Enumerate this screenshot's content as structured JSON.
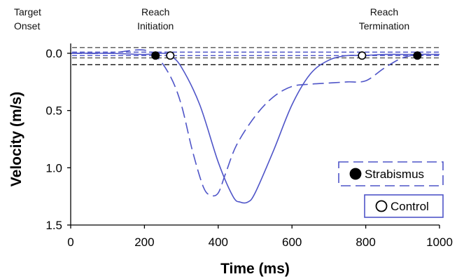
{
  "chart_data": {
    "type": "line",
    "xlabel": "Time (ms)",
    "ylabel": "Velocity (m/s)",
    "xlim": [
      0,
      1000
    ],
    "ylim": [
      0,
      1.5
    ],
    "y_inverted": true,
    "x_ticks": [
      0,
      200,
      400,
      600,
      800,
      1000
    ],
    "x_tick_labels": [
      "0",
      "200",
      "400",
      "600",
      "800",
      "1000"
    ],
    "y_ticks": [
      0.0,
      0.5,
      1.0,
      1.5
    ],
    "y_tick_labels": [
      "0.0",
      "0.5",
      "1.0",
      "1.5"
    ],
    "grid": false,
    "annotations": [
      {
        "lines": [
          "Target",
          "Onset"
        ],
        "x": 0
      },
      {
        "lines": [
          "Reach",
          "Initiation"
        ],
        "x": 230
      },
      {
        "lines": [
          "Reach",
          "Termination"
        ],
        "x": 850
      }
    ],
    "threshold_lines": [
      {
        "y": -0.05,
        "color": "#555555"
      },
      {
        "y": -0.01,
        "color": "#4f55c8"
      },
      {
        "y": 0.02,
        "color": "#4f55c8"
      },
      {
        "y": 0.04,
        "color": "#555555"
      },
      {
        "y": 0.1,
        "color": "#111111"
      }
    ],
    "series": [
      {
        "name": "Strabismus",
        "color": "#4f55c8",
        "dash": "dashed",
        "x": [
          0,
          100,
          190,
          230,
          270,
          300,
          330,
          360,
          380,
          400,
          420,
          450,
          500,
          550,
          600,
          650,
          700,
          750,
          800,
          850,
          900,
          950,
          1000
        ],
        "y": [
          0.0,
          0.0,
          -0.03,
          0.02,
          0.2,
          0.45,
          0.85,
          1.17,
          1.24,
          1.22,
          1.05,
          0.8,
          0.55,
          0.38,
          0.29,
          0.27,
          0.26,
          0.25,
          0.24,
          0.13,
          0.04,
          0.01,
          0.01
        ],
        "marker_x": 230,
        "marker_y": 0.02,
        "marker": "filled"
      },
      {
        "name": "Control",
        "color": "#4f55c8",
        "dash": "solid",
        "x": [
          0,
          100,
          200,
          250,
          270,
          300,
          350,
          400,
          440,
          460,
          480,
          500,
          550,
          600,
          650,
          700,
          750,
          790,
          850,
          900,
          950,
          1000
        ],
        "y": [
          0.0,
          0.0,
          0.01,
          0.0,
          0.02,
          0.12,
          0.45,
          0.95,
          1.25,
          1.3,
          1.3,
          1.22,
          0.85,
          0.45,
          0.18,
          0.06,
          0.02,
          0.02,
          0.01,
          0.01,
          0.01,
          0.01
        ],
        "marker_x": 790,
        "marker_y": 0.02,
        "marker": "open"
      }
    ],
    "extra_markers": [
      {
        "series": "Control",
        "x": 270,
        "y": 0.02,
        "marker": "open"
      },
      {
        "series": "Strabismus",
        "x": 940,
        "y": 0.02,
        "marker": "filled"
      }
    ],
    "legend": {
      "placement": "bottom-right",
      "entries": [
        {
          "label": "Strabismus",
          "marker": "filled",
          "border": "dashed"
        },
        {
          "label": "Control",
          "marker": "open",
          "border": "solid"
        }
      ]
    }
  }
}
